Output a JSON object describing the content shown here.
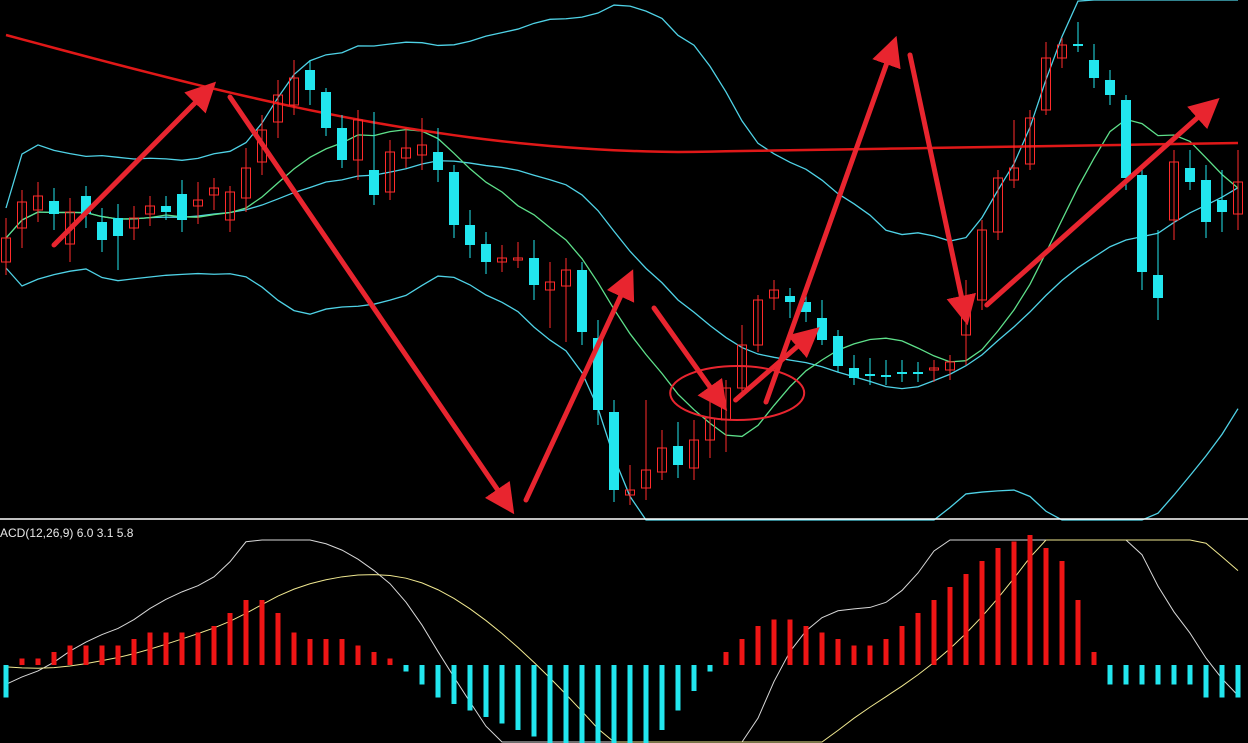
{
  "panels": {
    "macd_label": "ACD(12,26,9) 6.0 3.1 5.8"
  },
  "colors": {
    "background": "#000000",
    "up_candle": "#ff2b2b",
    "down_candle": "#22e6ee",
    "boll_band": "#4fd2e6",
    "ma_long": "#e01818",
    "ma_mid": "#5ee08a",
    "macd_pos": "#ee1515",
    "macd_neg": "#22e6ee",
    "dif_line": "#d8d8d8",
    "dea_line": "#f0e890",
    "arrow": "#e8252f",
    "separator": "#ffffff"
  },
  "chart_data": [
    {
      "type": "candlestick",
      "ylim": [
        0,
        520
      ],
      "bar_count": 78,
      "candles": [
        [
          262,
          238,
          275,
          218
        ],
        [
          228,
          202,
          248,
          190
        ],
        [
          210,
          196,
          222,
          182
        ],
        [
          201,
          214,
          230,
          188
        ],
        [
          244,
          212,
          262,
          198
        ],
        [
          196,
          214,
          228,
          186
        ],
        [
          222,
          240,
          252,
          208
        ],
        [
          218,
          236,
          270,
          204
        ],
        [
          228,
          218,
          240,
          206
        ],
        [
          214,
          206,
          226,
          196
        ],
        [
          206,
          212,
          220,
          196
        ],
        [
          194,
          220,
          232,
          180
        ],
        [
          206,
          200,
          224,
          182
        ],
        [
          195,
          188,
          210,
          178
        ],
        [
          220,
          192,
          232,
          186
        ],
        [
          198,
          168,
          212,
          148
        ],
        [
          162,
          130,
          175,
          115
        ],
        [
          122,
          95,
          138,
          80
        ],
        [
          105,
          78,
          115,
          60
        ],
        [
          70,
          90,
          105,
          60
        ],
        [
          92,
          128,
          136,
          88
        ],
        [
          128,
          160,
          168,
          115
        ],
        [
          160,
          120,
          180,
          110
        ],
        [
          170,
          195,
          205,
          112
        ],
        [
          192,
          152,
          200,
          140
        ],
        [
          158,
          148,
          168,
          128
        ],
        [
          155,
          145,
          170,
          118
        ],
        [
          152,
          170,
          182,
          128
        ],
        [
          172,
          225,
          238,
          165
        ],
        [
          225,
          245,
          258,
          210
        ],
        [
          244,
          262,
          274,
          232
        ],
        [
          262,
          258,
          272,
          245
        ],
        [
          260,
          258,
          268,
          242
        ],
        [
          258,
          285,
          300,
          240
        ],
        [
          290,
          282,
          328,
          262
        ],
        [
          286,
          270,
          342,
          258
        ],
        [
          270,
          332,
          345,
          262
        ],
        [
          338,
          410,
          425,
          320
        ],
        [
          412,
          490,
          502,
          400
        ],
        [
          495,
          490,
          505,
          465
        ],
        [
          488,
          470,
          500,
          400
        ],
        [
          472,
          448,
          480,
          430
        ],
        [
          446,
          465,
          478,
          422
        ],
        [
          468,
          440,
          480,
          420
        ],
        [
          440,
          418,
          458,
          400
        ],
        [
          420,
          388,
          452,
          380
        ],
        [
          388,
          345,
          395,
          325
        ],
        [
          345,
          300,
          352,
          295
        ],
        [
          298,
          290,
          310,
          280
        ],
        [
          296,
          302,
          318,
          288
        ],
        [
          302,
          312,
          322,
          292
        ],
        [
          318,
          340,
          345,
          300
        ],
        [
          336,
          366,
          372,
          330
        ],
        [
          368,
          378,
          385,
          355
        ],
        [
          374,
          374,
          385,
          358
        ],
        [
          375,
          375,
          385,
          360
        ],
        [
          372,
          372,
          382,
          360
        ],
        [
          372,
          372,
          382,
          362
        ],
        [
          370,
          368,
          382,
          360
        ],
        [
          370,
          362,
          380,
          355
        ],
        [
          335,
          300,
          365,
          280
        ],
        [
          300,
          230,
          310,
          220
        ],
        [
          232,
          178,
          240,
          170
        ],
        [
          180,
          168,
          188,
          120
        ],
        [
          164,
          118,
          170,
          110
        ],
        [
          110,
          58,
          115,
          42
        ],
        [
          58,
          45,
          68,
          38
        ],
        [
          44,
          46,
          52,
          22
        ],
        [
          60,
          78,
          88,
          44
        ],
        [
          80,
          95,
          105,
          70
        ],
        [
          100,
          178,
          190,
          95
        ],
        [
          175,
          272,
          290,
          165
        ],
        [
          275,
          298,
          320,
          230
        ],
        [
          220,
          162,
          240,
          150
        ],
        [
          168,
          182,
          190,
          150
        ],
        [
          180,
          222,
          238,
          165
        ],
        [
          200,
          212,
          232,
          170
        ],
        [
          214,
          182,
          230,
          150
        ]
      ]
    },
    {
      "type": "bar",
      "series": [
        {
          "values": [
            -5,
            1,
            1,
            2,
            3,
            3,
            3,
            3,
            4,
            5,
            5,
            5,
            5,
            6,
            8,
            10,
            10,
            8,
            5,
            4,
            4,
            4,
            3,
            2,
            1,
            -1,
            -3,
            -5,
            -6,
            -7,
            -8,
            -9,
            -10,
            -11,
            -12,
            -13,
            -14,
            -15,
            -16,
            -14,
            -12,
            -10,
            -7,
            -4,
            -1,
            2,
            4,
            6,
            7,
            7,
            6,
            5,
            4,
            3,
            3,
            4,
            6,
            8,
            10,
            12,
            14,
            16,
            18,
            19,
            20,
            18,
            16,
            10,
            2,
            -3,
            -3,
            -3,
            -3,
            -3,
            -3,
            -5,
            -5,
            -5
          ]
        }
      ]
    }
  ]
}
